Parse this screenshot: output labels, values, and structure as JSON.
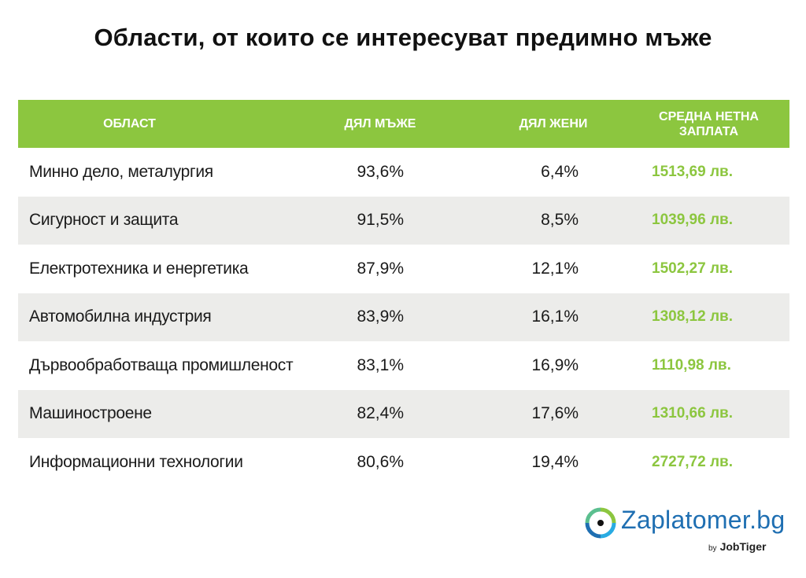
{
  "title": "Области, от които се интересуват предимно мъже",
  "headers": {
    "area": "ОБЛАСТ",
    "men": "ДЯЛ МЪЖЕ",
    "women": "ДЯЛ ЖЕНИ",
    "salary_line1": "СРЕДНА НЕТНА",
    "salary_line2": "ЗАПЛАТА"
  },
  "rows": [
    {
      "area": "Минно дело, металургия",
      "men": "93,6%",
      "women": "6,4%",
      "salary": "1513,69 лв."
    },
    {
      "area": "Сигурност и защита",
      "men": "91,5%",
      "women": "8,5%",
      "salary": "1039,96 лв."
    },
    {
      "area": "Електротехника и енергетика",
      "men": "87,9%",
      "women": "12,1%",
      "salary": "1502,27 лв."
    },
    {
      "area": "Автомобилна индустрия",
      "men": "83,9%",
      "women": "16,1%",
      "salary": "1308,12 лв."
    },
    {
      "area": "Дървообработваща промишленост",
      "men": "83,1%",
      "women": "16,9%",
      "salary": "1110,98 лв."
    },
    {
      "area": "Машиностроене",
      "men": "82,4%",
      "women": "17,6%",
      "salary": "1310,66 лв."
    },
    {
      "area": "Информационни технологии",
      "men": "80,6%",
      "women": "19,4%",
      "salary": "2727,72 лв."
    }
  ],
  "logo": {
    "name": "Zaplatomer.bg",
    "by": "by",
    "partner": "JobTiger"
  },
  "colors": {
    "accent_green": "#8cc63f",
    "row_alt": "#ececea",
    "logo_blue": "#1f6fb2"
  },
  "chart_data": {
    "type": "table",
    "title": "Области, от които се интересуват предимно мъже",
    "columns": [
      "ОБЛАСТ",
      "ДЯЛ МЪЖЕ",
      "ДЯЛ ЖЕНИ",
      "СРЕДНА НЕТНА ЗАПЛАТА"
    ],
    "rows": [
      [
        "Минно дело, металургия",
        "93,6%",
        "6,4%",
        "1513,69 лв."
      ],
      [
        "Сигурност и защита",
        "91,5%",
        "8,5%",
        "1039,96 лв."
      ],
      [
        "Електротехника и енергетика",
        "87,9%",
        "12,1%",
        "1502,27 лв."
      ],
      [
        "Автомобилна индустрия",
        "83,9%",
        "16,1%",
        "1308,12 лв."
      ],
      [
        "Дървообработваща промишленост",
        "83,1%",
        "16,9%",
        "1110,98 лв."
      ],
      [
        "Машиностроене",
        "82,4%",
        "17,6%",
        "1310,66 лв."
      ],
      [
        "Информационни технологии",
        "80,6%",
        "19,4%",
        "2727,72 лв."
      ]
    ]
  }
}
